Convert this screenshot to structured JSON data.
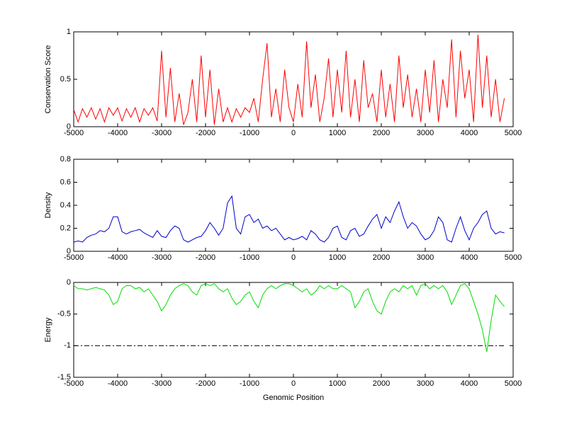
{
  "chart_data": [
    {
      "type": "line",
      "ylabel": "Conservation Score",
      "x": [
        -5000,
        -4900,
        -4800,
        -4700,
        -4600,
        -4500,
        -4400,
        -4300,
        -4200,
        -4100,
        -4000,
        -3900,
        -3800,
        -3700,
        -3600,
        -3500,
        -3400,
        -3300,
        -3200,
        -3100,
        -3000,
        -2900,
        -2800,
        -2700,
        -2600,
        -2500,
        -2400,
        -2300,
        -2200,
        -2100,
        -2000,
        -1900,
        -1800,
        -1700,
        -1600,
        -1500,
        -1400,
        -1300,
        -1200,
        -1100,
        -1000,
        -900,
        -800,
        -700,
        -600,
        -500,
        -400,
        -300,
        -200,
        -100,
        0,
        100,
        200,
        300,
        400,
        500,
        600,
        700,
        800,
        900,
        1000,
        1100,
        1200,
        1300,
        1400,
        1500,
        1600,
        1700,
        1800,
        1900,
        2000,
        2100,
        2200,
        2300,
        2400,
        2500,
        2600,
        2700,
        2800,
        2900,
        3000,
        3100,
        3200,
        3300,
        3400,
        3500,
        3600,
        3700,
        3800,
        3900,
        4000,
        4100,
        4200,
        4300,
        4400,
        4500,
        4600,
        4700,
        4800
      ],
      "series": [
        {
          "color": "#ff0000",
          "values": [
            0.18,
            0.05,
            0.19,
            0.1,
            0.2,
            0.08,
            0.19,
            0.05,
            0.2,
            0.12,
            0.2,
            0.06,
            0.19,
            0.1,
            0.2,
            0.05,
            0.19,
            0.12,
            0.2,
            0.06,
            0.8,
            0.1,
            0.62,
            0.05,
            0.35,
            0.02,
            0.15,
            0.5,
            0.05,
            0.75,
            0.1,
            0.6,
            0.02,
            0.4,
            0.05,
            0.2,
            0.05,
            0.19,
            0.1,
            0.2,
            0.15,
            0.3,
            0.05,
            0.5,
            0.88,
            0.1,
            0.4,
            0.05,
            0.6,
            0.2,
            0.05,
            0.45,
            0.1,
            0.9,
            0.2,
            0.55,
            0.05,
            0.3,
            0.72,
            0.1,
            0.6,
            0.15,
            0.8,
            0.1,
            0.5,
            0.05,
            0.7,
            0.2,
            0.35,
            0.05,
            0.6,
            0.1,
            0.45,
            0.05,
            0.75,
            0.2,
            0.55,
            0.1,
            0.4,
            0.05,
            0.6,
            0.15,
            0.7,
            0.05,
            0.5,
            0.2,
            0.92,
            0.1,
            0.8,
            0.3,
            0.6,
            0.05,
            0.97,
            0.2,
            0.75,
            0.1,
            0.5,
            0.05,
            0.3
          ]
        }
      ],
      "xlim": [
        -5000,
        5000
      ],
      "xticks": [
        -5000,
        -4000,
        -3000,
        -2000,
        -1000,
        0,
        1000,
        2000,
        3000,
        4000,
        5000
      ],
      "ylim": [
        0,
        1
      ],
      "yticks": [
        0,
        0.5,
        1
      ]
    },
    {
      "type": "line",
      "ylabel": "Density",
      "x": [
        -5000,
        -4900,
        -4800,
        -4700,
        -4600,
        -4500,
        -4400,
        -4300,
        -4200,
        -4100,
        -4000,
        -3900,
        -3800,
        -3700,
        -3600,
        -3500,
        -3400,
        -3300,
        -3200,
        -3100,
        -3000,
        -2900,
        -2800,
        -2700,
        -2600,
        -2500,
        -2400,
        -2300,
        -2200,
        -2100,
        -2000,
        -1900,
        -1800,
        -1700,
        -1600,
        -1500,
        -1400,
        -1300,
        -1200,
        -1100,
        -1000,
        -900,
        -800,
        -700,
        -600,
        -500,
        -400,
        -300,
        -200,
        -100,
        0,
        100,
        200,
        300,
        400,
        500,
        600,
        700,
        800,
        900,
        1000,
        1100,
        1200,
        1300,
        1400,
        1500,
        1600,
        1700,
        1800,
        1900,
        2000,
        2100,
        2200,
        2300,
        2400,
        2500,
        2600,
        2700,
        2800,
        2900,
        3000,
        3100,
        3200,
        3300,
        3400,
        3500,
        3600,
        3700,
        3800,
        3900,
        4000,
        4100,
        4200,
        4300,
        4400,
        4500,
        4600,
        4700,
        4800
      ],
      "series": [
        {
          "color": "#0000cc",
          "values": [
            0.08,
            0.09,
            0.08,
            0.12,
            0.14,
            0.15,
            0.18,
            0.17,
            0.2,
            0.3,
            0.3,
            0.17,
            0.15,
            0.17,
            0.18,
            0.19,
            0.16,
            0.14,
            0.12,
            0.18,
            0.13,
            0.12,
            0.18,
            0.22,
            0.2,
            0.1,
            0.08,
            0.1,
            0.12,
            0.13,
            0.18,
            0.25,
            0.2,
            0.14,
            0.2,
            0.42,
            0.48,
            0.2,
            0.15,
            0.3,
            0.32,
            0.25,
            0.28,
            0.2,
            0.22,
            0.18,
            0.2,
            0.15,
            0.1,
            0.12,
            0.1,
            0.11,
            0.13,
            0.1,
            0.18,
            0.15,
            0.1,
            0.08,
            0.12,
            0.2,
            0.22,
            0.12,
            0.1,
            0.18,
            0.2,
            0.13,
            0.15,
            0.22,
            0.28,
            0.32,
            0.2,
            0.3,
            0.25,
            0.35,
            0.43,
            0.3,
            0.2,
            0.25,
            0.22,
            0.15,
            0.1,
            0.12,
            0.18,
            0.3,
            0.25,
            0.1,
            0.08,
            0.2,
            0.3,
            0.18,
            0.1,
            0.2,
            0.25,
            0.32,
            0.35,
            0.2,
            0.15,
            0.17,
            0.16
          ]
        }
      ],
      "xlim": [
        -5000,
        5000
      ],
      "xticks": [
        -5000,
        -4000,
        -3000,
        -2000,
        -1000,
        0,
        1000,
        2000,
        3000,
        4000,
        5000
      ],
      "ylim": [
        0,
        0.8
      ],
      "yticks": [
        0,
        0.2,
        0.4,
        0.6,
        0.8
      ]
    },
    {
      "type": "line",
      "ylabel": "Energy",
      "xlabel": "Genomic Position",
      "x": [
        -5000,
        -4900,
        -4800,
        -4700,
        -4600,
        -4500,
        -4400,
        -4300,
        -4200,
        -4100,
        -4000,
        -3900,
        -3800,
        -3700,
        -3600,
        -3500,
        -3400,
        -3300,
        -3200,
        -3100,
        -3000,
        -2900,
        -2800,
        -2700,
        -2600,
        -2500,
        -2400,
        -2300,
        -2200,
        -2100,
        -2000,
        -1900,
        -1800,
        -1700,
        -1600,
        -1500,
        -1400,
        -1300,
        -1200,
        -1100,
        -1000,
        -900,
        -800,
        -700,
        -600,
        -500,
        -400,
        -300,
        -200,
        -100,
        0,
        100,
        200,
        300,
        400,
        500,
        600,
        700,
        800,
        900,
        1000,
        1100,
        1200,
        1300,
        1400,
        1500,
        1600,
        1700,
        1800,
        1900,
        2000,
        2100,
        2200,
        2300,
        2400,
        2500,
        2600,
        2700,
        2800,
        2900,
        3000,
        3100,
        3200,
        3300,
        3400,
        3500,
        3600,
        3700,
        3800,
        3900,
        4000,
        4100,
        4200,
        4300,
        4400,
        4500,
        4600,
        4700,
        4800
      ],
      "series": [
        {
          "color": "#00dd00",
          "values": [
            -0.05,
            -0.1,
            -0.1,
            -0.12,
            -0.1,
            -0.08,
            -0.1,
            -0.12,
            -0.2,
            -0.35,
            -0.3,
            -0.1,
            -0.05,
            -0.05,
            -0.1,
            -0.08,
            -0.15,
            -0.1,
            -0.2,
            -0.3,
            -0.45,
            -0.35,
            -0.2,
            -0.1,
            -0.05,
            -0.02,
            -0.05,
            -0.15,
            -0.2,
            -0.05,
            -0.02,
            -0.05,
            -0.02,
            -0.1,
            -0.15,
            -0.1,
            -0.25,
            -0.35,
            -0.3,
            -0.2,
            -0.15,
            -0.3,
            -0.4,
            -0.2,
            -0.1,
            -0.05,
            -0.1,
            -0.05,
            -0.02,
            -0.02,
            -0.05,
            -0.1,
            -0.15,
            -0.1,
            -0.2,
            -0.15,
            -0.05,
            -0.1,
            -0.05,
            -0.1,
            -0.1,
            -0.05,
            -0.1,
            -0.15,
            -0.4,
            -0.3,
            -0.15,
            -0.1,
            -0.3,
            -0.45,
            -0.5,
            -0.3,
            -0.15,
            -0.1,
            -0.15,
            -0.05,
            -0.1,
            -0.05,
            -0.2,
            -0.05,
            -0.02,
            -0.1,
            -0.05,
            -0.1,
            -0.05,
            -0.15,
            -0.35,
            -0.2,
            -0.05,
            -0.02,
            -0.1,
            -0.3,
            -0.5,
            -0.75,
            -1.1,
            -0.6,
            -0.2,
            -0.3,
            -0.38
          ]
        }
      ],
      "hlines": [
        {
          "value": -1,
          "x": [
            -5000,
            4800
          ],
          "color": "#000000",
          "style": "dash-dot"
        }
      ],
      "xlim": [
        -5000,
        5000
      ],
      "xticks": [
        -5000,
        -4000,
        -3000,
        -2000,
        -1000,
        0,
        1000,
        2000,
        3000,
        4000,
        5000
      ],
      "ylim": [
        -1.5,
        0
      ],
      "yticks": [
        -1.5,
        -1,
        -0.5,
        0
      ]
    }
  ]
}
